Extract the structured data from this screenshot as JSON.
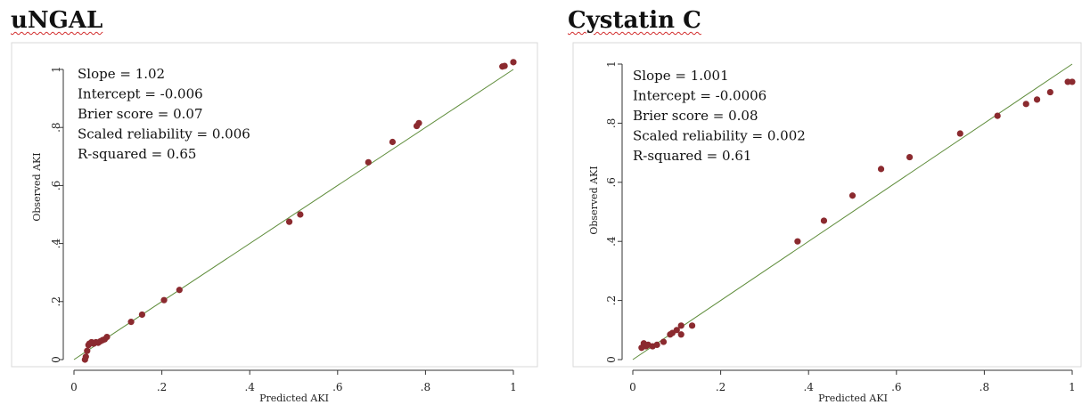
{
  "panels": [
    {
      "title": "uNGAL",
      "stats": [
        "Slope = 1.02",
        "Intercept = -0.006",
        "Brier score = 0.07",
        "Scaled reliability = 0.006",
        "R-squared = 0.65"
      ]
    },
    {
      "title": "Cystatin C",
      "stats": [
        "Slope = 1.001",
        "Intercept = -0.0006",
        "Brier score = 0.08",
        "Scaled reliability = 0.002",
        "R-squared = 0.61"
      ]
    }
  ],
  "colors": {
    "points": "#8b2a2f",
    "line": "#5e8c3a",
    "axis": "#333333",
    "frame": "#d9d9d9"
  },
  "chart_data": [
    {
      "type": "scatter",
      "title": "uNGAL",
      "xlabel": "Predicted AKI",
      "ylabel": "Observed AKI",
      "xlim": [
        0,
        1
      ],
      "ylim": [
        0,
        1
      ],
      "x_ticks": [
        "0",
        ".2",
        ".4",
        ".6",
        ".8",
        "1"
      ],
      "y_ticks": [
        "0",
        ".2",
        ".4",
        ".6",
        ".8",
        "1"
      ],
      "reference_line": [
        [
          0,
          0
        ],
        [
          1,
          1
        ]
      ],
      "points": [
        [
          0.025,
          0.0
        ],
        [
          0.027,
          0.01
        ],
        [
          0.03,
          0.03
        ],
        [
          0.033,
          0.05
        ],
        [
          0.035,
          0.055
        ],
        [
          0.04,
          0.06
        ],
        [
          0.045,
          0.055
        ],
        [
          0.05,
          0.06
        ],
        [
          0.055,
          0.058
        ],
        [
          0.06,
          0.063
        ],
        [
          0.065,
          0.067
        ],
        [
          0.07,
          0.07
        ],
        [
          0.075,
          0.078
        ],
        [
          0.13,
          0.13
        ],
        [
          0.155,
          0.155
        ],
        [
          0.205,
          0.205
        ],
        [
          0.24,
          0.24
        ],
        [
          0.49,
          0.475
        ],
        [
          0.515,
          0.5
        ],
        [
          0.67,
          0.68
        ],
        [
          0.725,
          0.75
        ],
        [
          0.78,
          0.805
        ],
        [
          0.785,
          0.815
        ],
        [
          0.975,
          1.01
        ],
        [
          0.98,
          1.012
        ],
        [
          1.0,
          1.025
        ]
      ]
    },
    {
      "type": "scatter",
      "title": "Cystatin C",
      "xlabel": "Predicted AKI",
      "ylabel": "Observed AKI",
      "xlim": [
        0,
        1
      ],
      "ylim": [
        0,
        1
      ],
      "x_ticks": [
        "0",
        ".2",
        ".4",
        ".6",
        ".8",
        "1"
      ],
      "y_ticks": [
        "0",
        ".2",
        ".4",
        ".6",
        ".8",
        "1"
      ],
      "reference_line": [
        [
          0,
          0
        ],
        [
          1,
          1
        ]
      ],
      "points": [
        [
          0.02,
          0.04
        ],
        [
          0.025,
          0.055
        ],
        [
          0.03,
          0.045
        ],
        [
          0.035,
          0.05
        ],
        [
          0.045,
          0.045
        ],
        [
          0.055,
          0.05
        ],
        [
          0.07,
          0.06
        ],
        [
          0.085,
          0.085
        ],
        [
          0.09,
          0.09
        ],
        [
          0.1,
          0.1
        ],
        [
          0.11,
          0.115
        ],
        [
          0.11,
          0.085
        ],
        [
          0.135,
          0.115
        ],
        [
          0.375,
          0.4
        ],
        [
          0.435,
          0.47
        ],
        [
          0.5,
          0.555
        ],
        [
          0.565,
          0.645
        ],
        [
          0.63,
          0.685
        ],
        [
          0.745,
          0.765
        ],
        [
          0.83,
          0.825
        ],
        [
          0.895,
          0.865
        ],
        [
          0.92,
          0.88
        ],
        [
          0.95,
          0.905
        ],
        [
          0.99,
          0.94
        ],
        [
          1.0,
          0.94
        ]
      ]
    }
  ]
}
